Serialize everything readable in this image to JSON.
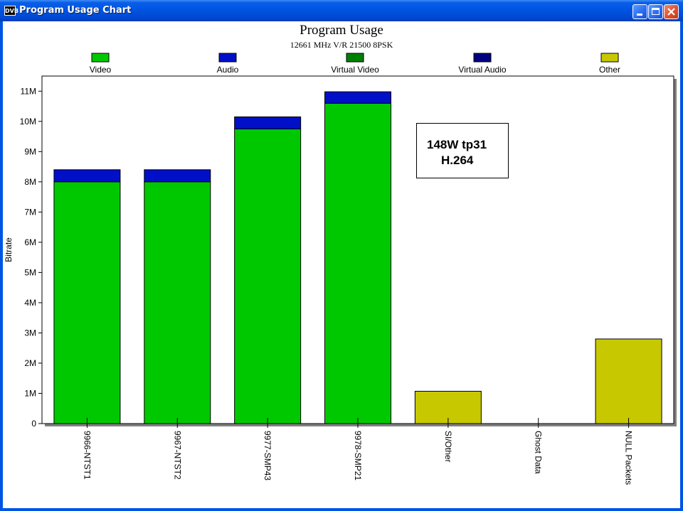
{
  "window": {
    "title": "Program Usage Chart",
    "icon_text": "DVB",
    "controls": {
      "minimize": "minimize-icon",
      "maximize": "maximize-icon",
      "close": "close-icon"
    }
  },
  "note": {
    "line1": "148W tp31",
    "line2": "H.264"
  },
  "colors": {
    "video": "#00c800",
    "audio": "#0010c8",
    "virtual_video": "#008000",
    "virtual_audio": "#000080",
    "other": "#c8c800"
  },
  "chart_data": {
    "type": "bar",
    "stacked": true,
    "title": "Program Usage",
    "subtitle": "12661 MHz V/R 21500 8PSK",
    "xlabel": "",
    "ylabel": "Bitrate",
    "ylim": [
      0,
      11500000
    ],
    "yticks": [
      0,
      1000000,
      2000000,
      3000000,
      4000000,
      5000000,
      6000000,
      7000000,
      8000000,
      9000000,
      10000000,
      11000000
    ],
    "ytick_labels": [
      "0",
      "1M",
      "2M",
      "3M",
      "4M",
      "5M",
      "6M",
      "7M",
      "8M",
      "9M",
      "10M",
      "11M"
    ],
    "legend_position": "top",
    "categories": [
      "9966-NTST1",
      "9967-NTST2",
      "9977-SMP43",
      "9978-SMP21",
      "SI/Other",
      "Ghost Data",
      "NULL Packets"
    ],
    "series": [
      {
        "name": "Video",
        "color": "#00c800",
        "values": [
          8000000,
          8000000,
          9750000,
          10600000,
          0,
          0,
          0
        ]
      },
      {
        "name": "Audio",
        "color": "#0010c8",
        "values": [
          400000,
          400000,
          400000,
          380000,
          0,
          0,
          0
        ]
      },
      {
        "name": "Virtual Video",
        "color": "#008000",
        "values": [
          0,
          0,
          0,
          0,
          0,
          0,
          0
        ]
      },
      {
        "name": "Virtual Audio",
        "color": "#000080",
        "values": [
          0,
          0,
          0,
          0,
          0,
          0,
          0
        ]
      },
      {
        "name": "Other",
        "color": "#c8c800",
        "values": [
          0,
          0,
          0,
          0,
          1070000,
          0,
          2800000
        ]
      }
    ],
    "grid": false
  }
}
